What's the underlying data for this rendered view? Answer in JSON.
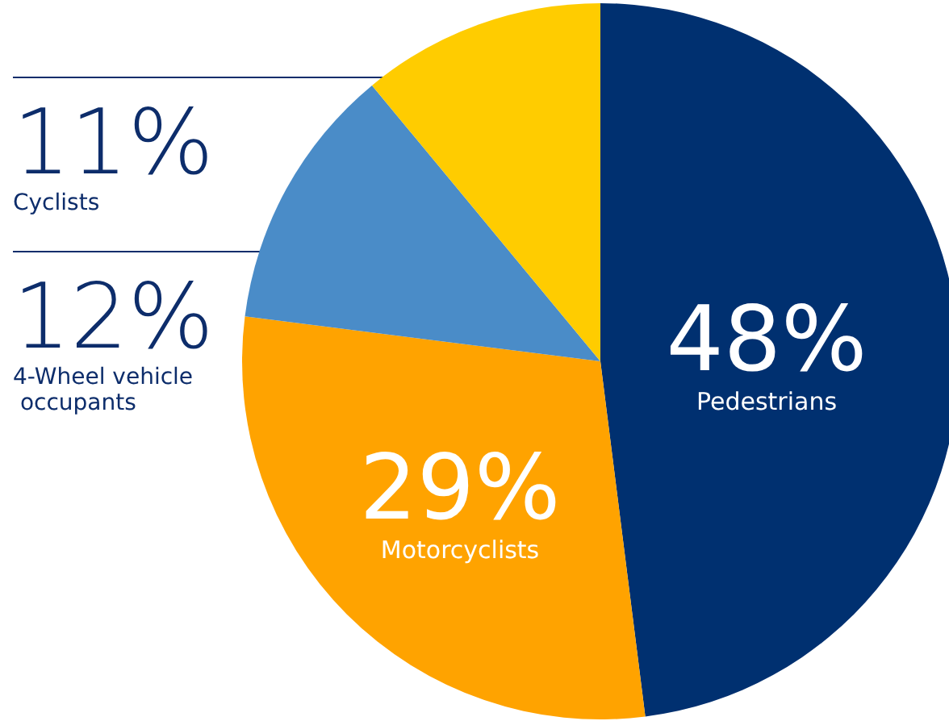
{
  "chart_data": {
    "type": "pie",
    "categories": [
      "Pedestrians",
      "Motorcyclists",
      "4-Wheel vehicle occupants",
      "Cyclists"
    ],
    "values": [
      48,
      29,
      12,
      11
    ],
    "colors": [
      "#003070",
      "#ffa300",
      "#4a8cc8",
      "#ffcc00"
    ],
    "value_labels": [
      "48%",
      "29%",
      "12%",
      "11%"
    ],
    "legend": false
  }
}
